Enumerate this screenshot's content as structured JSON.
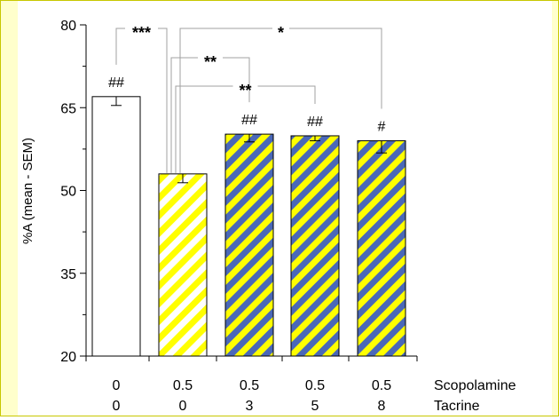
{
  "chart_data": {
    "type": "bar",
    "title": "",
    "xlabel": "",
    "ylabel": "%A (mean - SEM)",
    "ylim": [
      20,
      80
    ],
    "yticks": [
      20,
      35,
      50,
      65,
      80
    ],
    "grid": false,
    "legend": "none",
    "row_labels": [
      "Scopolamine",
      "Tacrine"
    ],
    "categories": [
      {
        "scopolamine": "0",
        "tacrine": "0"
      },
      {
        "scopolamine": "0.5",
        "tacrine": "0"
      },
      {
        "scopolamine": "0.5",
        "tacrine": "3"
      },
      {
        "scopolamine": "0.5",
        "tacrine": "5"
      },
      {
        "scopolamine": "0.5",
        "tacrine": "8"
      }
    ],
    "values": [
      67,
      53,
      60.2,
      59.9,
      59
    ],
    "sem": [
      1.6,
      1.6,
      1.4,
      0.9,
      2.2
    ],
    "fills": [
      "white",
      "yellow-white-stripes",
      "yellow-blue-stripes",
      "yellow-blue-stripes",
      "yellow-blue-stripes"
    ],
    "bar_labels": [
      "##",
      "",
      "##",
      "##",
      "#"
    ],
    "comparisons": [
      {
        "from": 0,
        "to": 1,
        "label": "***"
      },
      {
        "from": 1,
        "to": 2,
        "label": "**"
      },
      {
        "from": 1,
        "to": 3,
        "label": "**"
      },
      {
        "from": 1,
        "to": 4,
        "label": "*"
      }
    ],
    "colors": {
      "yellow": "#ffff00",
      "blue": "#4a68b8",
      "frame": "#ffffcc",
      "bracket": "#a0a0a0"
    }
  }
}
